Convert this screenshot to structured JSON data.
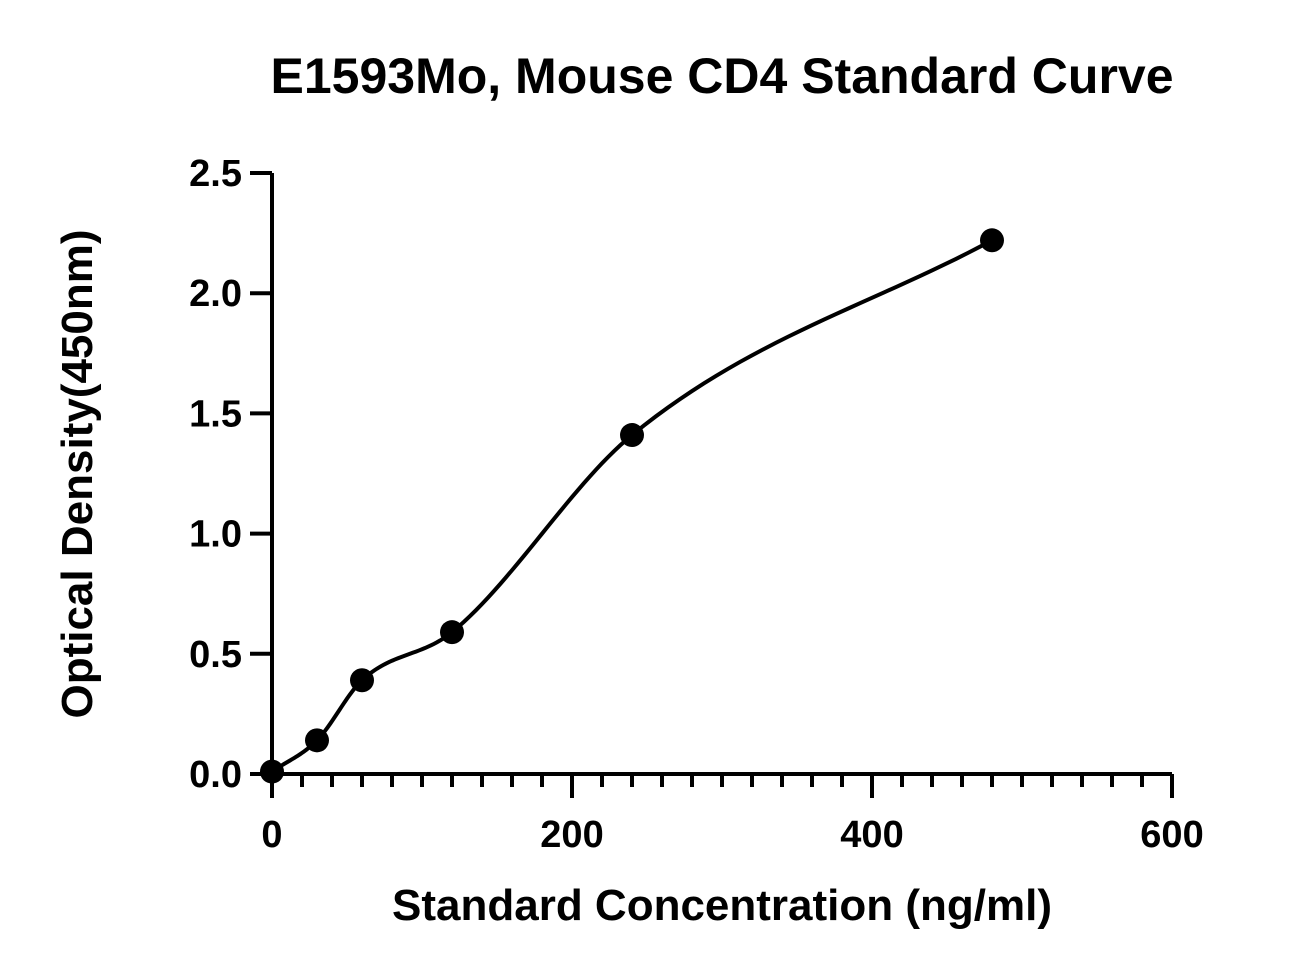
{
  "chart_data": {
    "type": "scatter",
    "title": "E1593Mo, Mouse CD4 Standard Curve",
    "xlabel": "Standard Concentration (ng/ml)",
    "ylabel": "Optical Density(450nm)",
    "xlim": [
      0,
      600
    ],
    "ylim": [
      0,
      2.5
    ],
    "x_ticks": [
      0,
      200,
      400,
      600
    ],
    "x_tick_labels": [
      "0",
      "200",
      "400",
      "600"
    ],
    "x_minor_step": 20,
    "y_ticks": [
      0,
      0.5,
      1.0,
      1.5,
      2.0,
      2.5
    ],
    "y_tick_labels": [
      "0.0",
      "0.5",
      "1.0",
      "1.5",
      "2.0",
      "2.5"
    ],
    "grid": false,
    "series": [
      {
        "x": [
          0,
          30,
          60,
          120,
          240,
          480
        ],
        "y": [
          0.01,
          0.14,
          0.39,
          0.59,
          1.41,
          2.22
        ],
        "fit_curve": true
      }
    ],
    "colors": {
      "points": "#000000",
      "curve": "#000000",
      "axes": "#000000"
    }
  }
}
